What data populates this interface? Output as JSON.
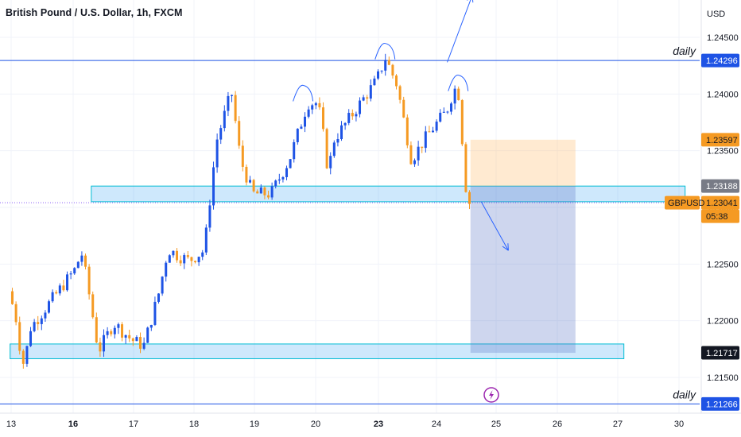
{
  "header": {
    "title": "British Pound / U.S. Dollar, 1h, FXCM"
  },
  "price_axis": {
    "currency": "USD",
    "ticks": [
      "1.24500",
      "1.24000",
      "1.23500",
      "1.23000",
      "1.22500",
      "1.22000",
      "1.21500"
    ]
  },
  "time_axis": {
    "labels": [
      "13",
      "16",
      "17",
      "18",
      "19",
      "20",
      "23",
      "24",
      "25",
      "26",
      "27",
      "30"
    ]
  },
  "price_tags": [
    {
      "id": "daily-high",
      "value": "1.24296",
      "bg": "#1e53e5",
      "fg": "#ffffff"
    },
    {
      "id": "trade-stop",
      "value": "1.23597",
      "bg": "#f59a23",
      "fg": "#131722"
    },
    {
      "id": "zone-top",
      "value": "1.23188",
      "bg": "#787b86",
      "fg": "#ffffff"
    },
    {
      "id": "last-price",
      "value": "1.23041",
      "bg": "#f59a23",
      "fg": "#131722"
    },
    {
      "id": "countdown",
      "value": "05:38",
      "bg": "#f59a23",
      "fg": "#131722"
    },
    {
      "id": "target",
      "value": "1.21717",
      "bg": "#131722",
      "fg": "#ffffff"
    },
    {
      "id": "daily-low",
      "value": "1.21266",
      "bg": "#1e53e5",
      "fg": "#ffffff"
    }
  ],
  "symbol_tag": {
    "value": "GBPUSD",
    "bg": "#f59a23",
    "fg": "#131722"
  },
  "annotations": {
    "daily_top": "daily",
    "daily_bottom": "daily"
  },
  "colors": {
    "bull": "#1e53e5",
    "bear": "#f59a23",
    "horizontal_line": "#1e53e5",
    "zone_fill": "rgba(33,150,243,0.22)",
    "zone_border": "#00bcd4",
    "stop_fill": "rgba(255,180,90,0.28)",
    "target_fill": "rgba(92,120,200,0.30)",
    "last_price_line": "#8b5cf6",
    "arrow": "#2962ff",
    "grid": "#f0f3fa"
  },
  "chart_data": {
    "type": "candlestick",
    "symbol": "GBPUSD",
    "timeframe": "1h",
    "source": "FXCM",
    "y_axis_range": [
      1.21266,
      1.24296
    ],
    "horizontal_levels": [
      {
        "price": 1.24296,
        "label": "daily"
      },
      {
        "price": 1.21266,
        "label": "daily"
      }
    ],
    "zones": [
      {
        "name": "support-resistance",
        "price_top": 1.23188,
        "price_bottom": 1.2305,
        "from_day": 16.3,
        "to_day": 30.3
      },
      {
        "name": "demand",
        "price_top": 1.21795,
        "price_bottom": 1.21665,
        "from_day": 12.95,
        "to_day": 27.3
      }
    ],
    "short_position": {
      "entry": 1.23188,
      "stop": 1.23597,
      "target": 1.21717,
      "from_day": 24.57,
      "to_day": 26.3
    },
    "last_price": 1.23041,
    "countdown": "05:38",
    "price_path": [
      {
        "day": 12.97,
        "price": 1.2226
      },
      {
        "day": 13.3,
        "price": 1.2205
      },
      {
        "day": 13.55,
        "price": 1.2172
      },
      {
        "day": 13.75,
        "price": 1.2158
      },
      {
        "day": 13.95,
        "price": 1.2192
      },
      {
        "day": 16.1,
        "price": 1.2248
      },
      {
        "day": 16.15,
        "price": 1.2265
      },
      {
        "day": 16.25,
        "price": 1.2238
      },
      {
        "day": 16.45,
        "price": 1.2173
      },
      {
        "day": 16.7,
        "price": 1.2198
      },
      {
        "day": 17.0,
        "price": 1.2183
      },
      {
        "day": 17.2,
        "price": 1.2178
      },
      {
        "day": 17.45,
        "price": 1.2225
      },
      {
        "day": 17.6,
        "price": 1.2263
      },
      {
        "day": 17.75,
        "price": 1.2258
      },
      {
        "day": 17.95,
        "price": 1.2253
      },
      {
        "day": 18.2,
        "price": 1.2262
      },
      {
        "day": 18.4,
        "price": 1.2358
      },
      {
        "day": 18.65,
        "price": 1.2402
      },
      {
        "day": 18.8,
        "price": 1.2342
      },
      {
        "day": 19.0,
        "price": 1.2312
      },
      {
        "day": 19.3,
        "price": 1.2312
      },
      {
        "day": 19.6,
        "price": 1.2342
      },
      {
        "day": 19.9,
        "price": 1.2392
      },
      {
        "day": 20.2,
        "price": 1.2392
      },
      {
        "day": 20.5,
        "price": 1.2358
      },
      {
        "day": 20.7,
        "price": 1.2328
      },
      {
        "day": 20.9,
        "price": 1.2358
      },
      {
        "day": 23.0,
        "price": 1.2412
      },
      {
        "day": 23.15,
        "price": 1.2432
      },
      {
        "day": 23.35,
        "price": 1.2408
      },
      {
        "day": 23.6,
        "price": 1.2342
      },
      {
        "day": 23.8,
        "price": 1.2358
      },
      {
        "day": 24.0,
        "price": 1.2372
      },
      {
        "day": 24.2,
        "price": 1.2385
      },
      {
        "day": 24.33,
        "price": 1.2405
      },
      {
        "day": 24.42,
        "price": 1.2398
      },
      {
        "day": 24.5,
        "price": 1.2325
      },
      {
        "day": 24.57,
        "price": 1.23041
      }
    ],
    "arrows": [
      {
        "from": {
          "day": 24.18,
          "price": 1.2428
        },
        "to": {
          "day": 24.6,
          "price": 1.2487
        }
      },
      {
        "from": {
          "day": 24.75,
          "price": 1.2305
        },
        "to": {
          "day": 25.2,
          "price": 1.2262
        }
      }
    ],
    "arcs": [
      {
        "day": 19.8,
        "price": 1.2402
      },
      {
        "day": 23.12,
        "price": 1.2439
      },
      {
        "day": 24.37,
        "price": 1.2411
      }
    ]
  }
}
